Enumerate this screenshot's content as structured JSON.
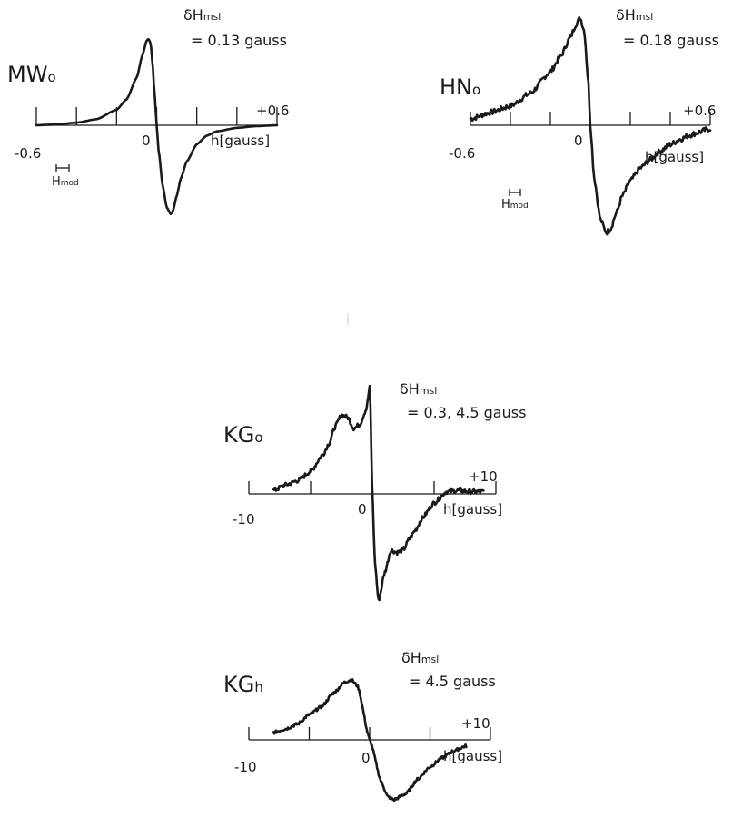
{
  "chart_data": [
    {
      "type": "line",
      "title": "MW",
      "title_sub": "o",
      "annotation": {
        "main": "δH",
        "sub": "msl",
        "value": "= 0.13 gauss"
      },
      "xlabel": "h[gauss]",
      "xlim": [
        -0.6,
        0.6
      ],
      "tick_labels": [
        "-0.6",
        "0",
        "+0.6"
      ],
      "ticks": [
        -0.6,
        -0.4,
        -0.2,
        0,
        0.2,
        0.4,
        0.6
      ],
      "marker": {
        "main": "H",
        "sub": "mod"
      },
      "noise": 0,
      "x": [
        -0.6,
        -0.5,
        -0.4,
        -0.3,
        -0.2,
        -0.15,
        -0.1,
        -0.07,
        -0.05,
        -0.04,
        -0.03,
        -0.02,
        -0.01,
        0,
        0.01,
        0.03,
        0.05,
        0.07,
        0.08,
        0.1,
        0.12,
        0.15,
        0.2,
        0.25,
        0.3,
        0.4,
        0.5,
        0.6
      ],
      "y": [
        0.0,
        0.01,
        0.03,
        0.07,
        0.18,
        0.3,
        0.55,
        0.82,
        0.98,
        1.0,
        0.95,
        0.7,
        0.35,
        0.0,
        -0.3,
        -0.7,
        -0.95,
        -1.03,
        -1.0,
        -0.82,
        -0.62,
        -0.42,
        -0.22,
        -0.12,
        -0.07,
        -0.03,
        -0.01,
        0.0
      ]
    },
    {
      "type": "line",
      "title": "HN",
      "title_sub": "o",
      "annotation": {
        "main": "δH",
        "sub": "msl",
        "value": "= 0.18 gauss"
      },
      "xlabel": "h[gauss]",
      "xlim": [
        -0.6,
        0.6
      ],
      "tick_labels": [
        "-0.6",
        "0",
        "+0.6"
      ],
      "ticks": [
        -0.6,
        -0.4,
        -0.2,
        0,
        0.2,
        0.4,
        0.6
      ],
      "marker": {
        "main": "H",
        "sub": "mod"
      },
      "noise": 0.025,
      "x": [
        -0.6,
        -0.5,
        -0.4,
        -0.3,
        -0.2,
        -0.15,
        -0.1,
        -0.07,
        -0.05,
        -0.03,
        -0.01,
        0,
        0.02,
        0.05,
        0.08,
        0.1,
        0.13,
        0.16,
        0.2,
        0.25,
        0.3,
        0.35,
        0.4,
        0.45,
        0.5,
        0.55,
        0.6
      ],
      "y": [
        0.06,
        0.12,
        0.18,
        0.3,
        0.5,
        0.64,
        0.82,
        0.95,
        1.0,
        0.88,
        0.4,
        0.0,
        -0.5,
        -0.88,
        -1.0,
        -0.97,
        -0.82,
        -0.66,
        -0.52,
        -0.4,
        -0.32,
        -0.24,
        -0.18,
        -0.13,
        -0.09,
        -0.06,
        -0.03
      ]
    },
    {
      "type": "line",
      "title": "KG",
      "title_sub": "o",
      "annotation": {
        "main": "δH",
        "sub": "msl",
        "value": "= 0.3, 4.5 gauss"
      },
      "xlabel": "h[gauss]",
      "xlim": [
        -10,
        10
      ],
      "tick_labels": [
        "-10",
        "0",
        "+10"
      ],
      "ticks": [
        -10,
        -5,
        0,
        5,
        10
      ],
      "noise": 0.02,
      "x": [
        -8,
        -7,
        -6,
        -5,
        -4,
        -3.5,
        -3,
        -2.5,
        -2,
        -1.5,
        -1,
        -0.5,
        -0.2,
        0,
        0.2,
        0.5,
        1,
        1.5,
        2,
        2.5,
        3,
        3.5,
        4,
        5,
        6,
        7,
        8,
        9
      ],
      "y": [
        0.03,
        0.08,
        0.12,
        0.2,
        0.35,
        0.45,
        0.6,
        0.7,
        0.68,
        0.58,
        0.62,
        0.75,
        0.95,
        0.0,
        -0.6,
        -0.95,
        -0.7,
        -0.5,
        -0.52,
        -0.5,
        -0.4,
        -0.32,
        -0.22,
        -0.08,
        0.02,
        0.03,
        0.02,
        0.02
      ]
    },
    {
      "type": "line",
      "title": "KG",
      "title_sub": "h",
      "annotation": {
        "main": "δH",
        "sub": "msl",
        "value": "= 4.5 gauss"
      },
      "xlabel": "h[gauss]",
      "xlim": [
        -10,
        10
      ],
      "tick_labels": [
        "-10",
        "0",
        "+10"
      ],
      "ticks": [
        -10,
        -5,
        0,
        5,
        10
      ],
      "noise": 0.025,
      "x": [
        -8,
        -7,
        -6,
        -5,
        -4,
        -3,
        -2,
        -1.5,
        -1,
        0,
        1,
        1.5,
        2,
        3,
        4,
        5,
        6,
        7,
        8
      ],
      "y": [
        0.12,
        0.18,
        0.26,
        0.42,
        0.55,
        0.78,
        0.97,
        1.0,
        0.9,
        0.0,
        -0.72,
        -0.95,
        -1.0,
        -0.9,
        -0.65,
        -0.45,
        -0.3,
        -0.18,
        -0.1
      ]
    }
  ]
}
